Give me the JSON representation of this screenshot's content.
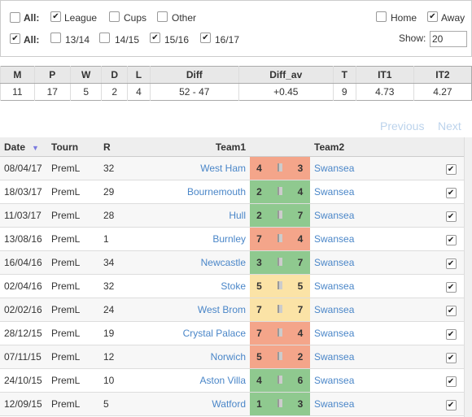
{
  "filters": {
    "row1": [
      {
        "label": "All:",
        "checked": false
      },
      {
        "label": "League",
        "checked": true
      },
      {
        "label": "Cups",
        "checked": false
      },
      {
        "label": "Other",
        "checked": false
      }
    ],
    "row2": [
      {
        "label": "All:",
        "checked": true
      },
      {
        "label": "13/14",
        "checked": false
      },
      {
        "label": "14/15",
        "checked": false
      },
      {
        "label": "15/16",
        "checked": true
      },
      {
        "label": "16/17",
        "checked": true
      }
    ],
    "venue": [
      {
        "label": "Home",
        "checked": false
      },
      {
        "label": "Away",
        "checked": true
      }
    ],
    "show_label": "Show:",
    "show_value": "20"
  },
  "summary": {
    "headers": [
      "M",
      "P",
      "W",
      "D",
      "L",
      "Diff",
      "Diff_av",
      "T",
      "IT1",
      "IT2"
    ],
    "values": [
      11,
      17,
      5,
      2,
      4,
      "52 - 47",
      "+0.45",
      9,
      4.73,
      4.27
    ]
  },
  "nav": {
    "previous": "Previous",
    "next": "Next"
  },
  "matches": {
    "headers": [
      "Date",
      "Tourn",
      "R",
      "Team1",
      "Team2"
    ],
    "rows": [
      {
        "date": "08/04/17",
        "tourn": "PremL",
        "round": 32,
        "team1": "West Ham",
        "score1": 4,
        "score2": 3,
        "team2": "Swansea"
      },
      {
        "date": "18/03/17",
        "tourn": "PremL",
        "round": 29,
        "team1": "Bournemouth",
        "score1": 2,
        "score2": 4,
        "team2": "Swansea"
      },
      {
        "date": "11/03/17",
        "tourn": "PremL",
        "round": 28,
        "team1": "Hull",
        "score1": 2,
        "score2": 7,
        "team2": "Swansea"
      },
      {
        "date": "13/08/16",
        "tourn": "PremL",
        "round": 1,
        "team1": "Burnley",
        "score1": 7,
        "score2": 4,
        "team2": "Swansea"
      },
      {
        "date": "16/04/16",
        "tourn": "PremL",
        "round": 34,
        "team1": "Newcastle",
        "score1": 3,
        "score2": 7,
        "team2": "Swansea"
      },
      {
        "date": "02/04/16",
        "tourn": "PremL",
        "round": 32,
        "team1": "Stoke",
        "score1": 5,
        "score2": 5,
        "team2": "Swansea"
      },
      {
        "date": "02/02/16",
        "tourn": "PremL",
        "round": 24,
        "team1": "West Brom",
        "score1": 7,
        "score2": 7,
        "team2": "Swansea"
      },
      {
        "date": "28/12/15",
        "tourn": "PremL",
        "round": 19,
        "team1": "Crystal Palace",
        "score1": 7,
        "score2": 4,
        "team2": "Swansea"
      },
      {
        "date": "07/11/15",
        "tourn": "PremL",
        "round": 12,
        "team1": "Norwich",
        "score1": 5,
        "score2": 2,
        "team2": "Swansea"
      },
      {
        "date": "24/10/15",
        "tourn": "PremL",
        "round": 10,
        "team1": "Aston Villa",
        "score1": 4,
        "score2": 6,
        "team2": "Swansea"
      },
      {
        "date": "12/09/15",
        "tourn": "PremL",
        "round": 5,
        "team1": "Watford",
        "score1": 1,
        "score2": 3,
        "team2": "Swansea"
      }
    ]
  }
}
